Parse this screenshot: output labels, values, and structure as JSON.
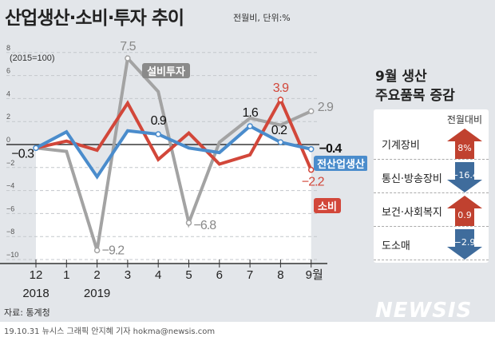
{
  "header": {
    "title": "산업생산·소비·투자 추이",
    "subtitle": "전월비, 단위:%"
  },
  "chart_data": {
    "type": "line",
    "note": "(2015=100)",
    "categories": [
      "12",
      "1",
      "2",
      "3",
      "4",
      "5",
      "6",
      "7",
      "8",
      "9월"
    ],
    "years": [
      {
        "label": "2018",
        "at": "12"
      },
      {
        "label": "2019",
        "at": "2"
      }
    ],
    "ylim": [
      -10,
      8
    ],
    "yticks": [
      8,
      6,
      4,
      2,
      0,
      -2,
      -4,
      -6,
      -8,
      -10
    ],
    "grid": true,
    "series": [
      {
        "name": "설비투자",
        "color": "#a3a3a3",
        "values": [
          -0.3,
          -0.6,
          -9.2,
          7.5,
          4.6,
          -6.8,
          0.2,
          2.3,
          1.7,
          2.9
        ],
        "labels": [
          {
            "i": 2,
            "text": "−9.2"
          },
          {
            "i": 3,
            "text": "7.5"
          },
          {
            "i": 5,
            "text": "−6.8"
          },
          {
            "i": 9,
            "text": "2.9"
          }
        ]
      },
      {
        "name": "소비",
        "color": "#d2473a",
        "values": [
          -0.3,
          0.3,
          -0.5,
          3.6,
          -1.3,
          1.0,
          -1.7,
          -0.9,
          3.9,
          -2.2
        ],
        "labels": [
          {
            "i": 8,
            "text": "3.9"
          },
          {
            "i": 9,
            "text": "−2.2"
          }
        ]
      },
      {
        "name": "전산업생산",
        "color": "#4a8ccc",
        "values": [
          -0.3,
          1.1,
          -2.8,
          1.2,
          0.9,
          -0.3,
          -0.7,
          1.6,
          0.2,
          -0.4
        ],
        "labels": [
          {
            "i": 0,
            "text": "−0.3"
          },
          {
            "i": 4,
            "text": "0.9"
          },
          {
            "i": 7,
            "text": "1.6"
          },
          {
            "i": 8,
            "text": "0.2"
          },
          {
            "i": 9,
            "text": "−0.4"
          }
        ]
      }
    ]
  },
  "panel": {
    "title_line1": "9월 생산",
    "title_line2": "주요품목 증감",
    "column_head": "전월대비",
    "items": [
      {
        "label": "기계장비",
        "value": "8%",
        "direction": "up",
        "color": "#c0412f"
      },
      {
        "label": "통신·방송장비",
        "value": "−16.4",
        "direction": "down",
        "color": "#3f6c9c"
      },
      {
        "label": "보건·사회복지",
        "value": "0.9",
        "direction": "up",
        "color": "#c0412f"
      },
      {
        "label": "도소매",
        "value": "−2.9",
        "direction": "down",
        "color": "#3f6c9c"
      }
    ]
  },
  "footer": {
    "source": "자료: 통계청",
    "credit": "19.10.31 뉴시스 그래픽 안지혜 기자 hokma@newsis.com",
    "logo": "NEWSIS"
  }
}
